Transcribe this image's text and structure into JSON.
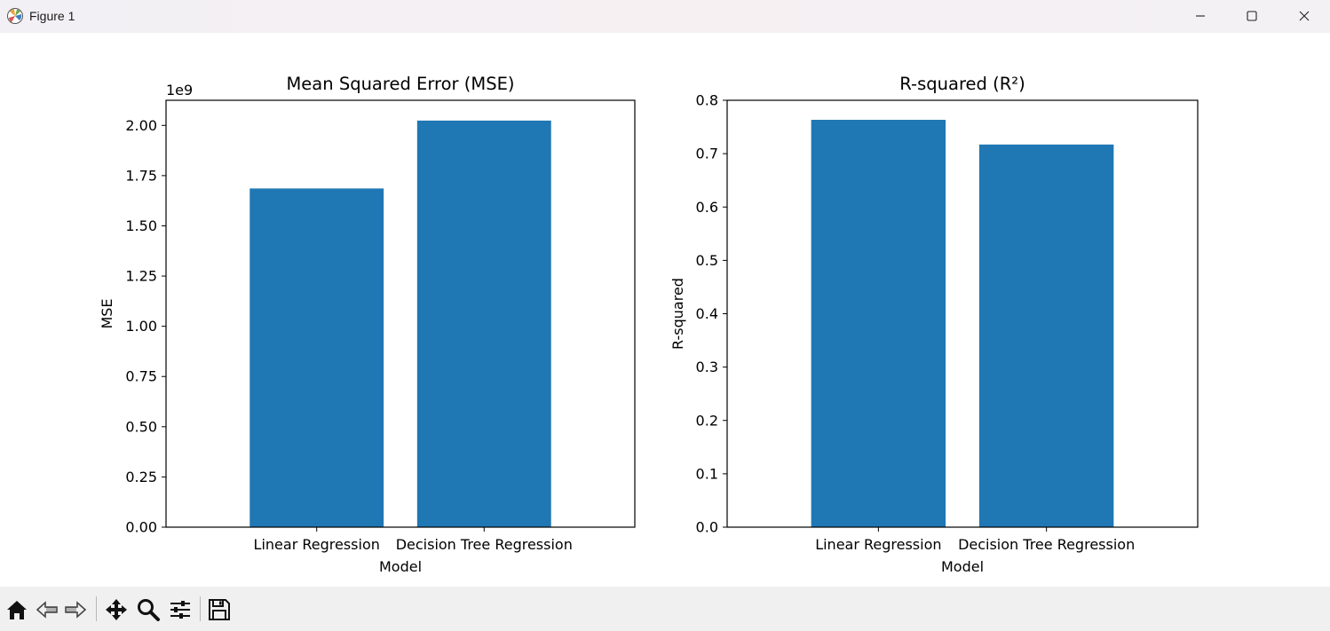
{
  "window": {
    "title": "Figure 1",
    "controls": [
      "minimize-icon",
      "maximize-icon",
      "close-icon"
    ]
  },
  "toolbar": {
    "tools": [
      "home-icon",
      "back-arrow-icon",
      "forward-arrow-icon",
      "pan-icon",
      "zoom-icon",
      "configure-subplots-icon",
      "save-icon"
    ]
  },
  "colors": {
    "bar": "#1f77b4"
  },
  "chart_data": [
    {
      "type": "bar",
      "title": "Mean Squared Error (MSE)",
      "xlabel": "Model",
      "ylabel": "MSE",
      "offset_text": "1e9",
      "categories": [
        "Linear Regression",
        "Decision Tree Regression"
      ],
      "values": [
        1686000000,
        2024000000
      ],
      "ylim": [
        0,
        2125000000
      ],
      "yticks": [
        0,
        250000000,
        500000000,
        750000000,
        1000000000,
        1250000000,
        1500000000,
        1750000000,
        2000000000
      ],
      "yticklabels": [
        "0.00",
        "0.25",
        "0.50",
        "0.75",
        "1.00",
        "1.25",
        "1.50",
        "1.75",
        "2.00"
      ],
      "grid": false
    },
    {
      "type": "bar",
      "title": "R-squared (R²)",
      "xlabel": "Model",
      "ylabel": "R-squared",
      "categories": [
        "Linear Regression",
        "Decision Tree Regression"
      ],
      "values": [
        0.7634,
        0.7171
      ],
      "ylim": [
        0,
        0.8
      ],
      "yticks": [
        0,
        0.1,
        0.2,
        0.3,
        0.4,
        0.5,
        0.6,
        0.7,
        0.8
      ],
      "yticklabels": [
        "0.0",
        "0.1",
        "0.2",
        "0.3",
        "0.4",
        "0.5",
        "0.6",
        "0.7",
        "0.8"
      ],
      "grid": false
    }
  ]
}
